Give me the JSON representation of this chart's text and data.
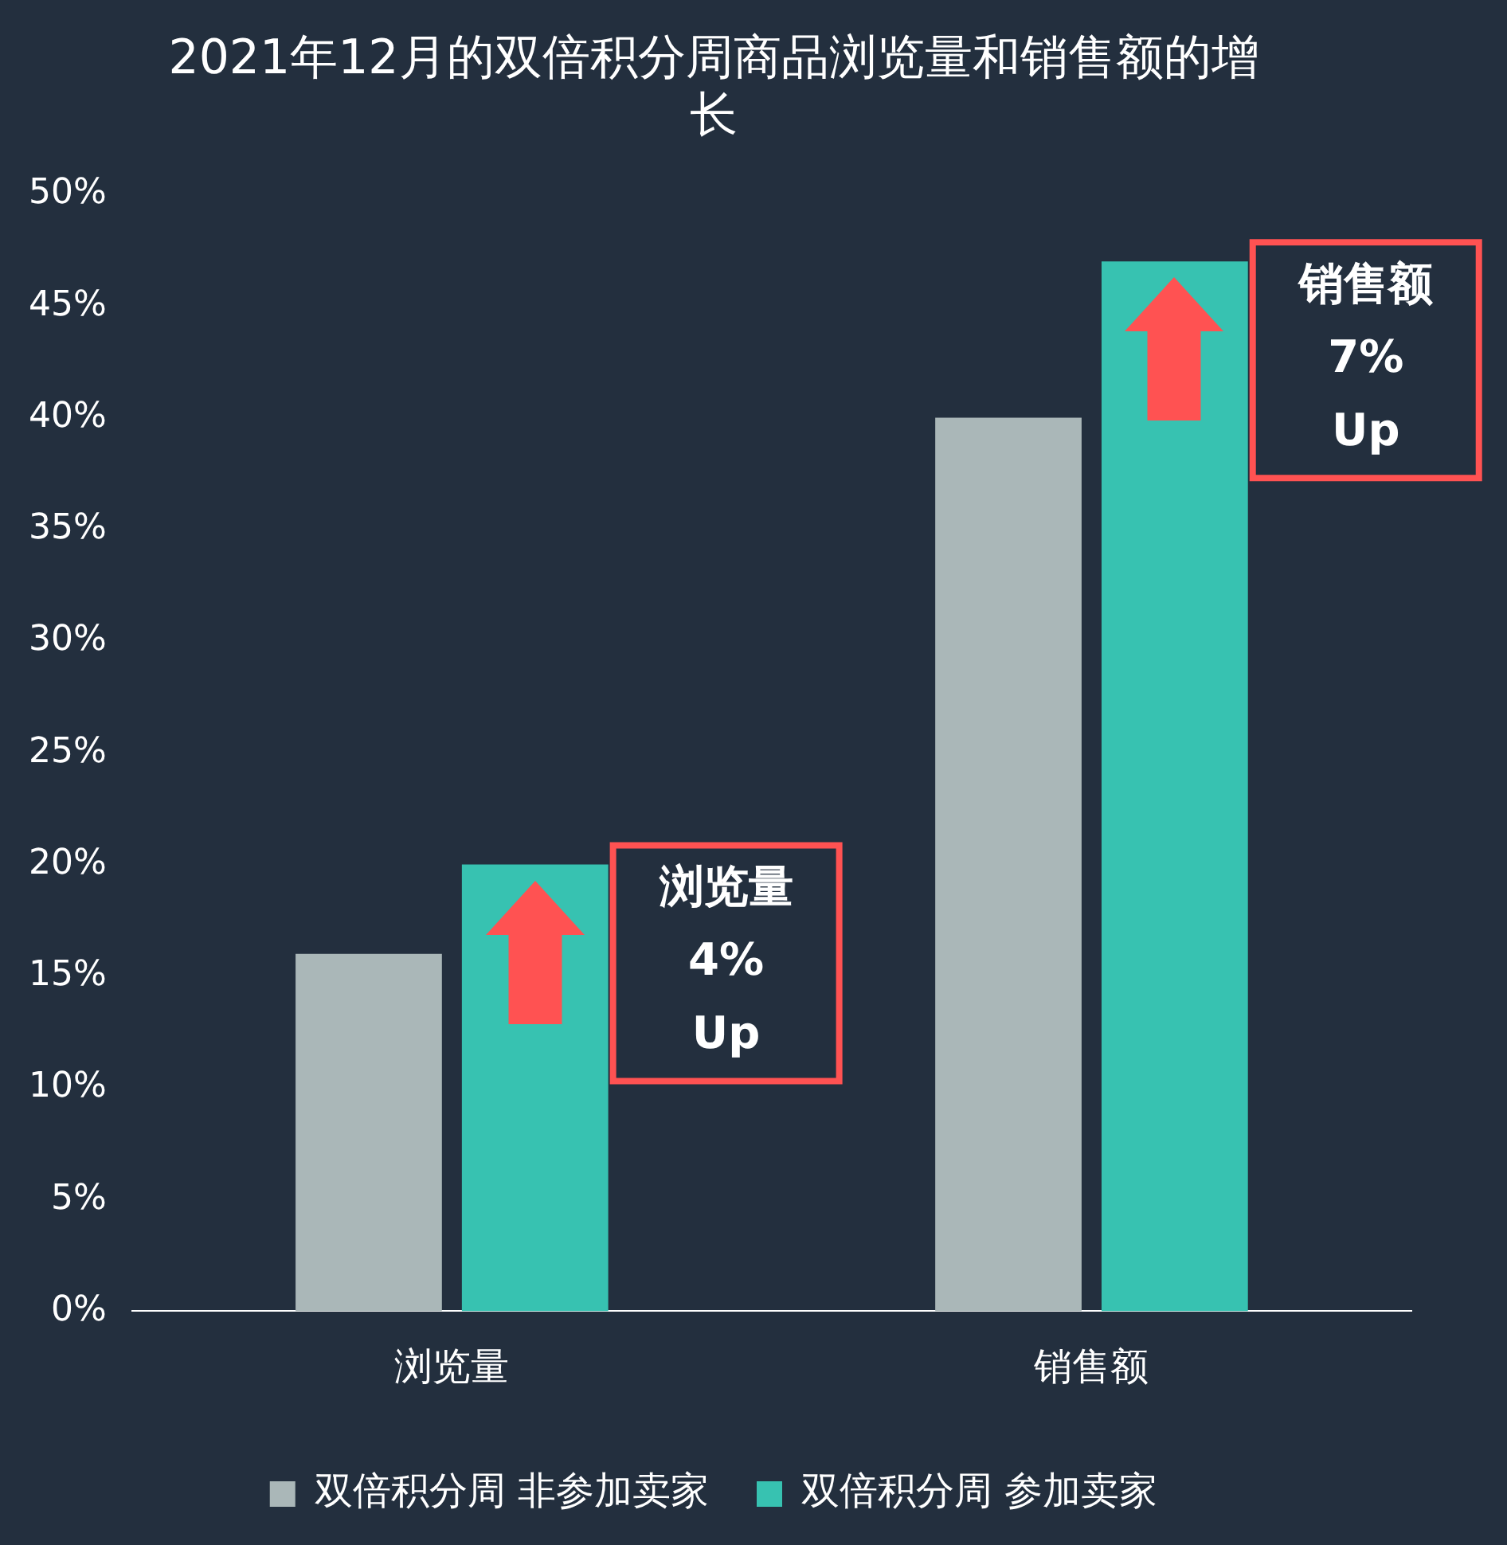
{
  "chart_data": {
    "type": "bar",
    "title": "2021年12月的双倍积分周商品浏览量和销售额的增长",
    "categories": [
      "浏览量",
      "销售额"
    ],
    "series": [
      {
        "name": "双倍积分周 非参加卖家",
        "color": "#aab7b8",
        "values": [
          16,
          40
        ]
      },
      {
        "name": "双倍积分周 参加卖家",
        "color": "#37c2b1",
        "values": [
          20,
          47
        ]
      }
    ],
    "ylim": [
      0,
      50
    ],
    "yticks": [
      {
        "value": 0,
        "label": "0%"
      },
      {
        "value": 5,
        "label": "5%"
      },
      {
        "value": 10,
        "label": "10%"
      },
      {
        "value": 15,
        "label": "15%"
      },
      {
        "value": 20,
        "label": "20%"
      },
      {
        "value": 25,
        "label": "25%"
      },
      {
        "value": 30,
        "label": "30%"
      },
      {
        "value": 35,
        "label": "35%"
      },
      {
        "value": 40,
        "label": "40%"
      },
      {
        "value": 45,
        "label": "45%"
      },
      {
        "value": 50,
        "label": "50%"
      }
    ],
    "grid": false,
    "legend": "bottom",
    "annotations": [
      "浏览量\n4%\nUp",
      "销售额\n7%\nUp"
    ]
  }
}
